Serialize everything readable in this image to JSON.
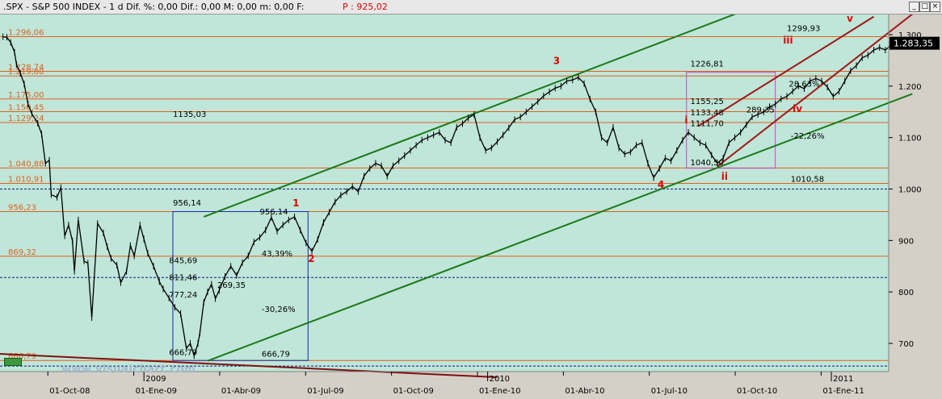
{
  "window": {
    "title": ".SPX - S&P 500 INDEX -  1 d Dif. %: 0,00 Dif.: 0,00 M: 0,00 m: 0,00 F:",
    "price_label": "P : 925,02",
    "buttons": [
      "_",
      "□",
      "×"
    ],
    "logo": "www.visualchart.com"
  },
  "chart_data": {
    "type": "line",
    "title": "",
    "xlabel": "",
    "ylabel": "",
    "ylim": [
      660,
      1330
    ],
    "x_ticks": [
      "01-Oct-08",
      "01-Ene-09",
      "01-Abr-09",
      "01-Jul-09",
      "01-Oct-09",
      "01-Ene-10",
      "01-Abr-10",
      "01-Jul-10",
      "01-Oct-10",
      "01-Ene-11"
    ],
    "year_labels": [
      "2009",
      "2010",
      "2011"
    ],
    "y_ticks": [
      "700",
      "800",
      "900",
      "1.000",
      "1.100",
      "1.200",
      "1.300"
    ],
    "last_price_label": "1.283,35",
    "series": [
      {
        "values": [
          [
            -6,
            1296
          ],
          [
            -4,
            1295
          ],
          [
            -2,
            1285
          ],
          [
            0,
            1266
          ],
          [
            1,
            1242
          ],
          [
            3,
            1225
          ],
          [
            5,
            1204
          ],
          [
            7,
            1165
          ],
          [
            9,
            1146
          ],
          [
            12,
            1128
          ],
          [
            14,
            1107
          ],
          [
            16,
            1050
          ],
          [
            18,
            1056
          ],
          [
            19,
            989
          ],
          [
            22,
            984
          ],
          [
            24,
            1003
          ],
          [
            26,
            909
          ],
          [
            28,
            930
          ],
          [
            30,
            899
          ],
          [
            31,
            840
          ],
          [
            33,
            940
          ],
          [
            36,
            860
          ],
          [
            38,
            856
          ],
          [
            40,
            750
          ],
          [
            43,
            933
          ],
          [
            46,
            915
          ],
          [
            48,
            888
          ],
          [
            50,
            865
          ],
          [
            53,
            852
          ],
          [
            55,
            818
          ],
          [
            58,
            840
          ],
          [
            60,
            890
          ],
          [
            62,
            870
          ],
          [
            65,
            930
          ],
          [
            67,
            903
          ],
          [
            69,
            875
          ],
          [
            72,
            850
          ],
          [
            75,
            820
          ],
          [
            77,
            806
          ],
          [
            80,
            788
          ],
          [
            83,
            770
          ],
          [
            86,
            758
          ],
          [
            89,
            690
          ],
          [
            91,
            700
          ],
          [
            93,
            676
          ],
          [
            95,
            700
          ],
          [
            96,
            720
          ],
          [
            98,
            780
          ],
          [
            100,
            800
          ],
          [
            102,
            815
          ],
          [
            104,
            787
          ],
          [
            106,
            803
          ],
          [
            109,
            830
          ],
          [
            112,
            850
          ],
          [
            115,
            832
          ],
          [
            118,
            857
          ],
          [
            121,
            870
          ],
          [
            124,
            897
          ],
          [
            127,
            906
          ],
          [
            130,
            920
          ],
          [
            133,
            945
          ],
          [
            136,
            918
          ],
          [
            139,
            930
          ],
          [
            142,
            940
          ],
          [
            145,
            946
          ],
          [
            148,
            920
          ],
          [
            151,
            895
          ],
          [
            154,
            879
          ],
          [
            157,
            902
          ],
          [
            160,
            935
          ],
          [
            163,
            955
          ],
          [
            166,
            975
          ],
          [
            169,
            988
          ],
          [
            172,
            995
          ],
          [
            175,
            1005
          ],
          [
            178,
            995
          ],
          [
            181,
            1025
          ],
          [
            184,
            1040
          ],
          [
            187,
            1050
          ],
          [
            190,
            1045
          ],
          [
            193,
            1025
          ],
          [
            196,
            1045
          ],
          [
            199,
            1055
          ],
          [
            202,
            1065
          ],
          [
            205,
            1075
          ],
          [
            208,
            1085
          ],
          [
            211,
            1095
          ],
          [
            214,
            1100
          ],
          [
            217,
            1105
          ],
          [
            220,
            1110
          ],
          [
            223,
            1095
          ],
          [
            226,
            1090
          ],
          [
            229,
            1120
          ],
          [
            232,
            1127
          ],
          [
            235,
            1138
          ],
          [
            238,
            1145
          ],
          [
            241,
            1100
          ],
          [
            244,
            1075
          ],
          [
            247,
            1080
          ],
          [
            250,
            1092
          ],
          [
            253,
            1105
          ],
          [
            256,
            1119
          ],
          [
            259,
            1135
          ],
          [
            262,
            1140
          ],
          [
            265,
            1150
          ],
          [
            268,
            1160
          ],
          [
            271,
            1170
          ],
          [
            274,
            1181
          ],
          [
            277,
            1189
          ],
          [
            280,
            1196
          ],
          [
            283,
            1200
          ],
          [
            286,
            1210
          ],
          [
            289,
            1212
          ],
          [
            292,
            1217
          ],
          [
            295,
            1205
          ],
          [
            298,
            1175
          ],
          [
            301,
            1150
          ],
          [
            304,
            1100
          ],
          [
            307,
            1090
          ],
          [
            310,
            1120
          ],
          [
            313,
            1080
          ],
          [
            316,
            1068
          ],
          [
            319,
            1072
          ],
          [
            322,
            1085
          ],
          [
            325,
            1090
          ],
          [
            328,
            1050
          ],
          [
            331,
            1022
          ],
          [
            334,
            1040
          ],
          [
            337,
            1060
          ],
          [
            340,
            1055
          ],
          [
            343,
            1075
          ],
          [
            346,
            1095
          ],
          [
            349,
            1110
          ],
          [
            352,
            1100
          ],
          [
            355,
            1090
          ],
          [
            358,
            1085
          ],
          [
            361,
            1066
          ],
          [
            364,
            1050
          ],
          [
            367,
            1060
          ],
          [
            370,
            1090
          ],
          [
            373,
            1100
          ],
          [
            376,
            1110
          ],
          [
            379,
            1125
          ],
          [
            382,
            1140
          ],
          [
            385,
            1145
          ],
          [
            388,
            1150
          ],
          [
            391,
            1160
          ],
          [
            394,
            1165
          ],
          [
            397,
            1175
          ],
          [
            400,
            1180
          ],
          [
            403,
            1190
          ],
          [
            406,
            1200
          ],
          [
            409,
            1195
          ],
          [
            412,
            1210
          ],
          [
            415,
            1215
          ],
          [
            418,
            1210
          ],
          [
            421,
            1198
          ],
          [
            424,
            1180
          ],
          [
            427,
            1190
          ],
          [
            430,
            1210
          ],
          [
            433,
            1230
          ],
          [
            436,
            1240
          ],
          [
            439,
            1255
          ],
          [
            442,
            1260
          ],
          [
            445,
            1270
          ],
          [
            448,
            1275
          ],
          [
            451,
            1270
          ],
          [
            454,
            1280
          ],
          [
            457,
            1283
          ]
        ]
      }
    ],
    "horizontal_levels": [
      {
        "label": "1.296,06",
        "value": 1296.06,
        "color": "#e06020"
      },
      {
        "label": "1.228,74",
        "value": 1228.74,
        "color": "#e06020"
      },
      {
        "label": "1.219,80",
        "value": 1219.8,
        "color": "#e06020"
      },
      {
        "label": "1.175,00",
        "value": 1175.0,
        "color": "#e06020"
      },
      {
        "label": "1.150,45",
        "value": 1150.45,
        "color": "#e06020"
      },
      {
        "label": "1.129,24",
        "value": 1129.24,
        "color": "#e06020"
      },
      {
        "label": "1.040,88",
        "value": 1040.88,
        "color": "#e06020"
      },
      {
        "label": "1.010,91",
        "value": 1010.91,
        "color": "#e06020"
      },
      {
        "label": "956,23",
        "value": 956.23,
        "color": "#e06020"
      },
      {
        "label": "869,32",
        "value": 869.32,
        "color": "#e06020"
      },
      {
        "label": "666,79",
        "value": 666.79,
        "color": "#e06020"
      }
    ],
    "dashed_levels": [
      {
        "value": 1000,
        "color": "#0a1a80"
      },
      {
        "value": 828,
        "color": "#0a1a80"
      },
      {
        "value": 656,
        "color": "#0a1a80"
      }
    ],
    "wave_labels": [
      {
        "text": "1",
        "t": 144,
        "y": 966,
        "color": "#e00000"
      },
      {
        "text": "2",
        "t": 152,
        "y": 858,
        "color": "#e00000"
      },
      {
        "text": "3",
        "t": 279,
        "y": 1243,
        "color": "#e00000"
      },
      {
        "text": "4",
        "t": 333,
        "y": 1002,
        "color": "#e00000"
      },
      {
        "text": "i",
        "t": 347,
        "y": 1128,
        "color": "#e00000"
      },
      {
        "text": "ii",
        "t": 366,
        "y": 1018,
        "color": "#e00000"
      },
      {
        "text": "iii",
        "t": 398,
        "y": 1283,
        "color": "#e00000"
      },
      {
        "text": "iv",
        "t": 403,
        "y": 1150,
        "color": "#e00000"
      },
      {
        "text": "v",
        "t": 431,
        "y": 1325,
        "color": "#e00000"
      }
    ],
    "annotations": [
      {
        "text": "1135,03",
        "t": 82,
        "y": 1140
      },
      {
        "text": "956,14",
        "t": 82,
        "y": 968
      },
      {
        "text": "956,14",
        "t": 127,
        "y": 951
      },
      {
        "text": "845,69",
        "t": 80,
        "y": 856
      },
      {
        "text": "43,39%",
        "t": 128,
        "y": 869
      },
      {
        "text": "811,46",
        "t": 80,
        "y": 823
      },
      {
        "text": "269,35",
        "t": 105,
        "y": 808
      },
      {
        "text": "777,24",
        "t": 80,
        "y": 789
      },
      {
        "text": "-30,26%",
        "t": 128,
        "y": 761
      },
      {
        "text": "666,79",
        "t": 80,
        "y": 677
      },
      {
        "text": "666,79",
        "t": 128,
        "y": 674
      },
      {
        "text": "1226,81",
        "t": 350,
        "y": 1238
      },
      {
        "text": "1299,93",
        "t": 400,
        "y": 1307
      },
      {
        "text": "1155,25",
        "t": 350,
        "y": 1165
      },
      {
        "text": "1133,48",
        "t": 350,
        "y": 1143
      },
      {
        "text": "1111,70",
        "t": 350,
        "y": 1122
      },
      {
        "text": "1040,50",
        "t": 350,
        "y": 1046
      },
      {
        "text": "289,35",
        "t": 379,
        "y": 1149
      },
      {
        "text": "28,63%",
        "t": 401,
        "y": 1199
      },
      {
        "text": "-22,26%",
        "t": 402,
        "y": 1098
      },
      {
        "text": "1010,58",
        "t": 402,
        "y": 1014
      }
    ],
    "trendlines": [
      {
        "from": [
          98,
          946
        ],
        "to": [
          378,
          1347
        ],
        "color": "#1a7a1a"
      },
      {
        "from": [
          100,
          666
        ],
        "to": [
          465,
          1185
        ],
        "color": "#1a7a1a"
      },
      {
        "from": [
          354,
          1122
        ],
        "to": [
          445,
          1335
        ],
        "color": "#a01818"
      },
      {
        "from": [
          364,
          1044
        ],
        "to": [
          465,
          1340
        ],
        "color": "#a01818"
      },
      {
        "from": [
          -10,
          680
        ],
        "to": [
          250,
          602
        ],
        "color": "#801010"
      }
    ],
    "boxes": [
      {
        "t1": 82,
        "t2": 152,
        "y1": 666.79,
        "y2": 956.14,
        "color": "#1a2aa0"
      },
      {
        "t1": 348,
        "t2": 394,
        "y1": 1040.5,
        "y2": 1226.81,
        "color": "#cc44cc"
      }
    ],
    "legend": "none",
    "grid": false
  }
}
